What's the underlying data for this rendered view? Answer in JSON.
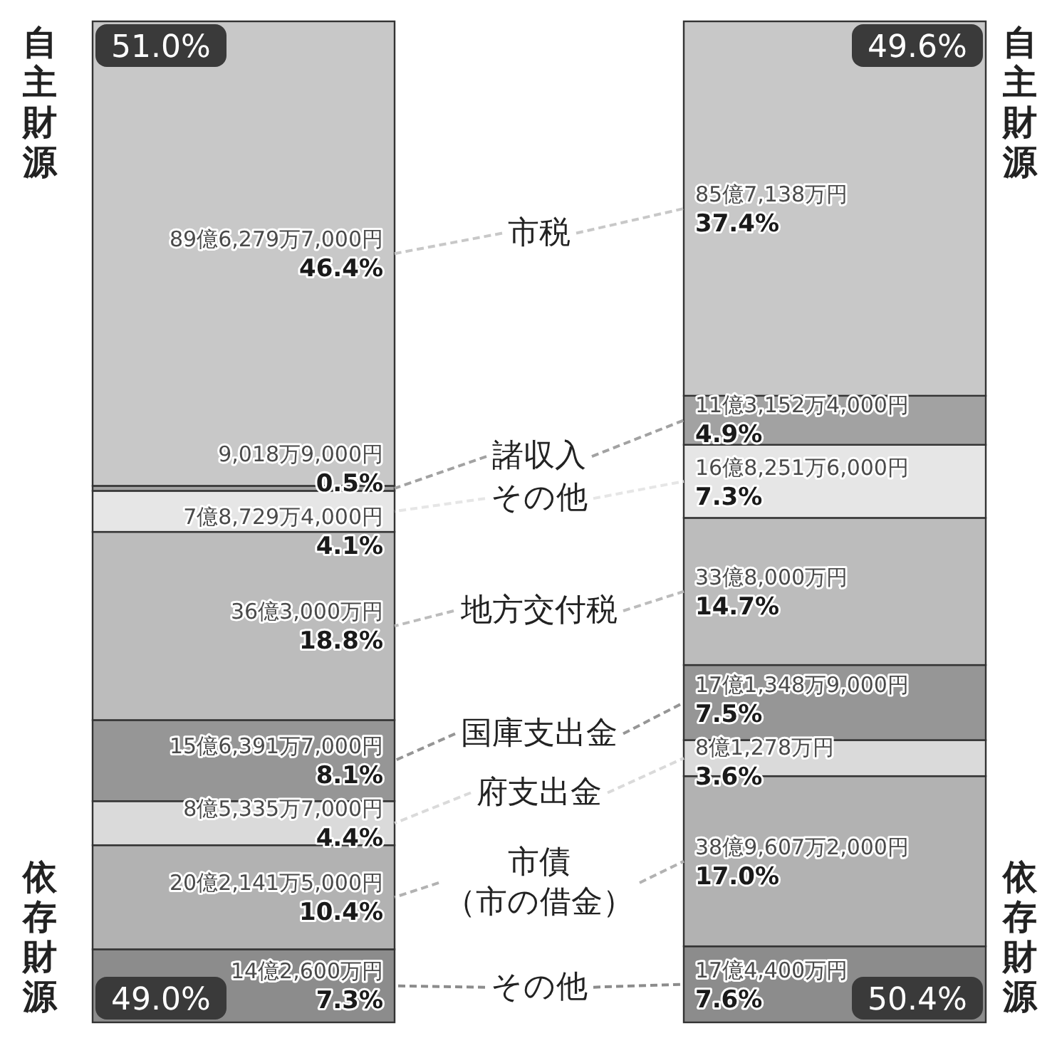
{
  "chart_data": {
    "type": "bar",
    "stacked": true,
    "categories": [
      null,
      null
    ],
    "series": [
      {
        "name": "その他",
        "color": "#8c8c8c",
        "values": [
          7.3,
          7.6
        ],
        "value_labels": [
          "14億2,600万円\n7.3%",
          "17億4,400万円\n7.6%"
        ]
      },
      {
        "name": "市債（市の借金）",
        "color": "#b2b2b2",
        "values": [
          10.4,
          17.0
        ],
        "value_labels": [
          "20億2,141万5,000円\n10.4%",
          "38億9,607万2,000円\n17.0%"
        ]
      },
      {
        "name": "府支出金",
        "color": "#dadada",
        "values": [
          4.4,
          3.6
        ],
        "value_labels": [
          "8億5,335万7,000円\n4.4%",
          "8億1,278万円\n3.6%"
        ]
      },
      {
        "name": "国庫支出金",
        "color": "#969696",
        "values": [
          8.1,
          7.5
        ],
        "value_labels": [
          "15億6,391万7,000円\n8.1%",
          "17億1,348万9,000円\n7.5%"
        ]
      },
      {
        "name": "地方交付税",
        "color": "#bcbcbc",
        "values": [
          18.8,
          14.7
        ],
        "value_labels": [
          "36億3,000万円\n18.8%",
          "33億8,000万円\n14.7%"
        ]
      },
      {
        "name": "その他",
        "color": "#e6e6e6",
        "values": [
          4.1,
          7.3
        ],
        "value_labels": [
          "7億8,729万4,000円\n4.1%",
          "16億8,251万6,000円\n7.3%"
        ]
      },
      {
        "name": "諸収入",
        "color": "#a2a2a2",
        "values": [
          0.5,
          4.9
        ],
        "value_labels": [
          "9,018万9,000円\n0.5%",
          "11億3,152万4,000円\n4.9%"
        ]
      },
      {
        "name": "市税",
        "color": "#c8c8c8",
        "values": [
          46.4,
          37.4
        ],
        "value_labels": [
          "89億6,279万7,000円\n46.4%",
          "85億7,138万円\n37.4%"
        ]
      }
    ],
    "legend": "center",
    "annotations": [
      "自主財源",
      "自主財源",
      "51.0%",
      "49.6%",
      "依存財源",
      "依存財源",
      "49.0%",
      "50.4%"
    ]
  }
}
